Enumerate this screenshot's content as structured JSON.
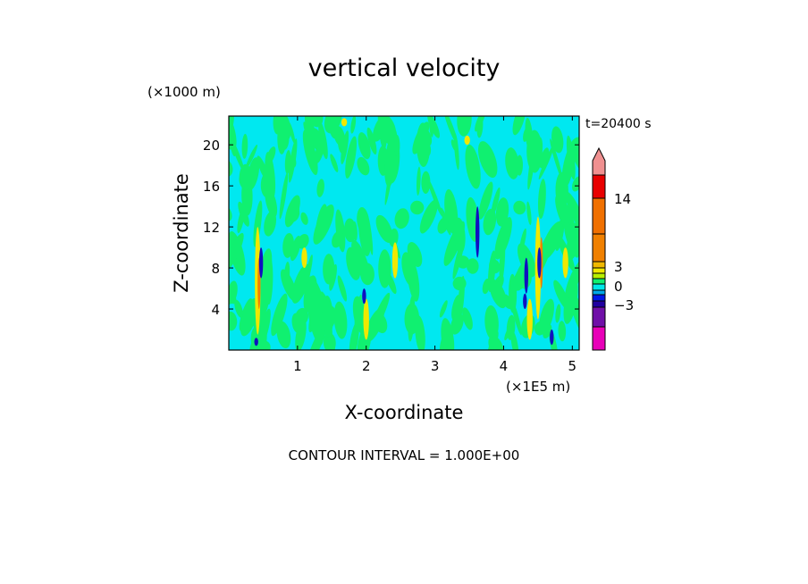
{
  "chart_data": {
    "type": "heatmap",
    "title": "vertical velocity",
    "ylabel": "Z-coordinate",
    "xlabel": "X-coordinate",
    "y_unit": "(×1000 m)",
    "x_unit": "(×1E5 m)",
    "time_label": "t=20400 s",
    "footer": "CONTOUR INTERVAL = 1.000E+00",
    "xlim": [
      0,
      5.1
    ],
    "ylim": [
      0,
      22.8
    ],
    "x_ticks": [
      1,
      2,
      3,
      4,
      5
    ],
    "y_ticks": [
      4,
      8,
      12,
      16,
      20
    ],
    "colorbar": {
      "labels": [
        {
          "value": 14,
          "text": "14"
        },
        {
          "value": 3,
          "text": "3"
        },
        {
          "value": 0,
          "text": "0"
        },
        {
          "value": -3,
          "text": "−3"
        }
      ],
      "bands": [
        {
          "color": "#e800b8"
        },
        {
          "color": "#7010a8"
        },
        {
          "color": "#2000a0"
        },
        {
          "color": "#0018e8"
        },
        {
          "color": "#00a8e8"
        },
        {
          "color": "#00e8e8"
        },
        {
          "color": "#10f070"
        },
        {
          "color": "#b8f000"
        },
        {
          "color": "#f0e800"
        },
        {
          "color": "#f0b800"
        },
        {
          "color": "#f08000"
        },
        {
          "color": "#f07000"
        },
        {
          "color": "#e80000"
        },
        {
          "color": "#f09090"
        }
      ]
    },
    "field_colors": {
      "background": "#00e8f0",
      "band": "#10f070",
      "updraft": "#f0e800",
      "updraft_core": "#f08000",
      "downdraft": "#1010c0"
    },
    "features": [
      {
        "kind": "updraft",
        "x": 0.42,
        "y0": 1.5,
        "y1": 12.0
      },
      {
        "kind": "updraft_core",
        "x": 0.44,
        "y0": 4.0,
        "y1": 9.0
      },
      {
        "kind": "downdraft",
        "x": 0.47,
        "y0": 7.0,
        "y1": 10.0
      },
      {
        "kind": "downdraft",
        "x": 0.4,
        "y0": 0.4,
        "y1": 1.2
      },
      {
        "kind": "updraft",
        "x": 2.0,
        "y0": 1.0,
        "y1": 5.0
      },
      {
        "kind": "downdraft",
        "x": 1.97,
        "y0": 4.5,
        "y1": 6.0
      },
      {
        "kind": "updraft",
        "x": 2.42,
        "y0": 7.0,
        "y1": 10.5
      },
      {
        "kind": "updraft",
        "x": 1.68,
        "y0": 21.8,
        "y1": 22.6
      },
      {
        "kind": "updraft",
        "x": 3.47,
        "y0": 20.0,
        "y1": 20.9
      },
      {
        "kind": "downdraft",
        "x": 3.62,
        "y0": 9.0,
        "y1": 14.0
      },
      {
        "kind": "updraft",
        "x": 4.5,
        "y0": 3.0,
        "y1": 13.0
      },
      {
        "kind": "updraft_core",
        "x": 4.55,
        "y0": 6.0,
        "y1": 11.0
      },
      {
        "kind": "downdraft",
        "x": 4.52,
        "y0": 7.0,
        "y1": 10.0
      },
      {
        "kind": "downdraft",
        "x": 4.33,
        "y0": 5.5,
        "y1": 9.0
      },
      {
        "kind": "updraft",
        "x": 4.38,
        "y0": 1.0,
        "y1": 5.0
      },
      {
        "kind": "downdraft",
        "x": 4.31,
        "y0": 4.0,
        "y1": 5.5
      },
      {
        "kind": "updraft",
        "x": 4.9,
        "y0": 7.0,
        "y1": 10.0
      },
      {
        "kind": "downdraft",
        "x": 4.7,
        "y0": 0.5,
        "y1": 2.0
      },
      {
        "kind": "updraft",
        "x": 1.1,
        "y0": 8.0,
        "y1": 10.0
      }
    ]
  }
}
